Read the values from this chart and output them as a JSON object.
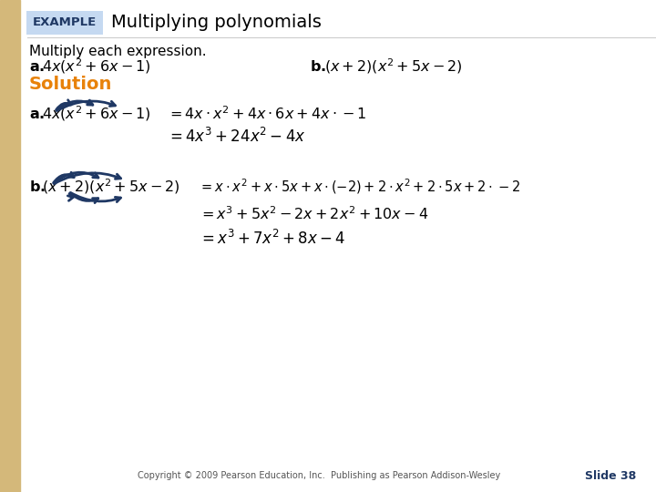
{
  "bg_color": "#FFFFFF",
  "left_bar_color": "#D4B87A",
  "example_box_color": "#C5D9F1",
  "example_text": "EXAMPLE",
  "example_text_color": "#1F3864",
  "title_text": "Multiplying polynomials",
  "title_color": "#000000",
  "multiply_text": "Multiply each expression.",
  "solution_text": "Solution",
  "solution_color": "#E8820A",
  "copyright_text": "Copyright © 2009 Pearson Education, Inc.  Publishing as Pearson Addison-Wesley",
  "slide_text": "Slide 38",
  "slide_color": "#1F3864",
  "footer_color": "#555555",
  "arrow_color": "#1F3864"
}
